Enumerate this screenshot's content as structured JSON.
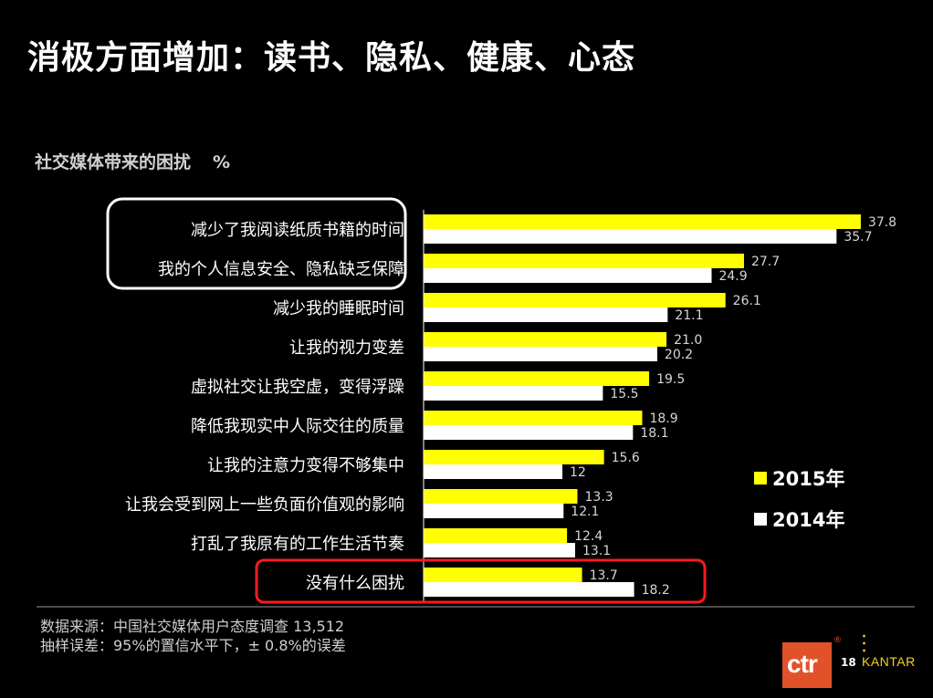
{
  "title": "消极方面增加：读书、隐私、健康、心态",
  "subtitle": "社交媒体带来的困扰",
  "unit": "%",
  "colors": {
    "y2015": "#ffff00",
    "y2014": "#ffffff",
    "background": "#000000",
    "highlight_white": "#ffffff",
    "highlight_red": "#ff1a1a",
    "brand_orange": "#e2522a",
    "kantar_gold": "#f5d21a"
  },
  "chart_data": {
    "type": "bar",
    "orientation": "horizontal",
    "categories": [
      "减少了我阅读纸质书籍的时间",
      "我的个人信息安全、隐私缺乏保障",
      "减少我的睡眠时间",
      "让我的视力变差",
      "虚拟社交让我空虚，变得浮躁",
      "降低我现实中人际交往的质量",
      "让我的注意力变得不够集中",
      "让我会受到网上一些负面价值观的影响",
      "打乱了我原有的工作生活节奏",
      "没有什么困扰"
    ],
    "series": [
      {
        "name": "2015年",
        "color": "#ffff00",
        "values": [
          37.8,
          27.7,
          26.1,
          21.0,
          19.5,
          18.9,
          15.6,
          13.3,
          12.4,
          13.7
        ],
        "labels": [
          "37.8",
          "27.7",
          "26.1",
          "21.0",
          "19.5",
          "18.9",
          "15.6",
          "13.3",
          "12.4",
          "13.7"
        ]
      },
      {
        "name": "2014年",
        "color": "#ffffff",
        "values": [
          35.7,
          24.9,
          21.1,
          20.2,
          15.5,
          18.1,
          12.0,
          12.1,
          13.1,
          18.2
        ],
        "labels": [
          "35.7",
          "24.9",
          "21.1",
          "20.2",
          "15.5",
          "18.1",
          "12",
          "12.1",
          "13.1",
          "18.2"
        ]
      }
    ],
    "grid": false,
    "legend_position": "right",
    "highlighted_groups": {
      "white_box": [
        0,
        1
      ],
      "red_box": [
        9
      ]
    }
  },
  "legend": {
    "item_2015": "2015年",
    "item_2014": "2014年"
  },
  "footer": {
    "source": "数据来源：中国社交媒体用户态度调查 13,512",
    "error": "抽样误差：95%的置信水平下，± 0.8%的误差"
  },
  "branding": {
    "ctr": "ctr",
    "registered": "®",
    "page_number": "18",
    "kantar": "KANTAR"
  }
}
